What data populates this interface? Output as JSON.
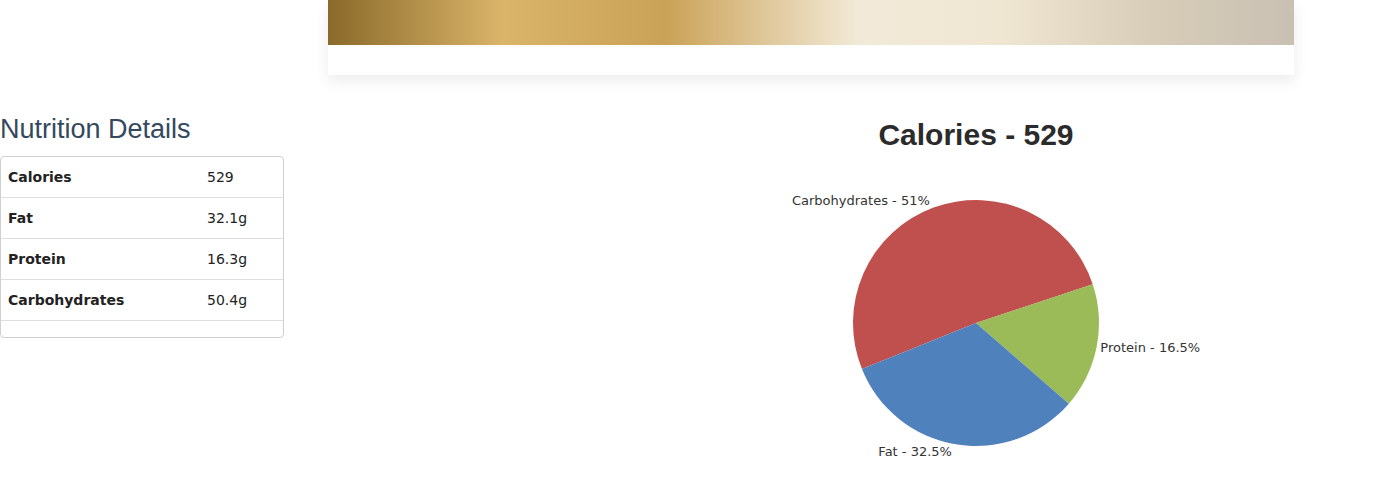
{
  "heading": "Nutrition Details",
  "table": {
    "rows": [
      [
        "Calories",
        "529"
      ],
      [
        "Fat",
        "32.1g"
      ],
      [
        "Protein",
        "16.3g"
      ],
      [
        "Carbohydrates",
        "50.4g"
      ]
    ]
  },
  "chart_data": {
    "type": "pie",
    "title": "Calories - 529",
    "categories": [
      "Carbohydrates",
      "Protein",
      "Fat"
    ],
    "values": [
      51,
      16.5,
      32.5
    ],
    "value_labels": [
      "Carbohydrates - 51%",
      "Protein - 16.5%",
      "Fat - 32.5%"
    ],
    "colors": [
      "#c0504d",
      "#9bbb59",
      "#4f81bd"
    ],
    "data_labels": true
  }
}
